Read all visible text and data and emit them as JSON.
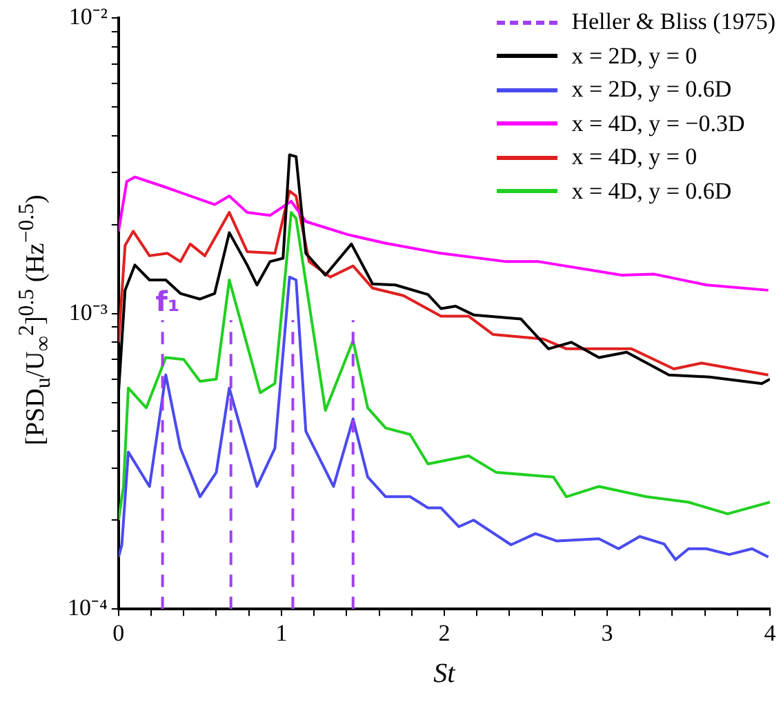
{
  "chart_data": {
    "type": "line",
    "xlabel": "St",
    "ylabel": "[PSD$_{u}$/U$_{∞}$$^{2}$]$^{0.5}$ (Hz$^{−0.5}$)",
    "xlim": [
      0,
      4
    ],
    "ylim": [
      0.0001,
      0.01
    ],
    "xticks": [
      0,
      {
        "value": 0.2,
        "label": null
      },
      {
        "value": 0.4,
        "label": null
      },
      {
        "value": 0.6,
        "label": null
      },
      {
        "value": 0.8,
        "label": null
      },
      1,
      {
        "value": 1.2,
        "label": null
      },
      {
        "value": 1.4,
        "label": null
      },
      {
        "value": 1.6,
        "label": null
      },
      {
        "value": 1.8,
        "label": null
      },
      2,
      {
        "value": 2.2,
        "label": null
      },
      {
        "value": 2.4,
        "label": null
      },
      {
        "value": 2.6,
        "label": null
      },
      {
        "value": 2.8,
        "label": null
      },
      3,
      {
        "value": 3.2,
        "label": null
      },
      {
        "value": 3.4,
        "label": null
      },
      {
        "value": 3.6,
        "label": null
      },
      {
        "value": 3.8,
        "label": null
      },
      4
    ],
    "yticks": [
      {
        "value": 0.0001,
        "label": "10⁻⁴"
      },
      {
        "value": 0.0002,
        "label": null
      },
      {
        "value": 0.0003,
        "label": null
      },
      {
        "value": 0.0004,
        "label": null
      },
      {
        "value": 0.0005,
        "label": null
      },
      {
        "value": 0.0006,
        "label": null
      },
      {
        "value": 0.0007,
        "label": null
      },
      {
        "value": 0.0008,
        "label": null
      },
      {
        "value": 0.0009,
        "label": null
      },
      {
        "value": 0.001,
        "label": "10⁻³"
      },
      {
        "value": 0.002,
        "label": null
      },
      {
        "value": 0.003,
        "label": null
      },
      {
        "value": 0.004,
        "label": null
      },
      {
        "value": 0.005,
        "label": null
      },
      {
        "value": 0.006,
        "label": null
      },
      {
        "value": 0.007,
        "label": null
      },
      {
        "value": 0.008,
        "label": null
      },
      {
        "value": 0.009,
        "label": null
      },
      {
        "value": 0.01,
        "label": "10⁻²"
      }
    ],
    "log": "y",
    "grid": false,
    "legend": "top right",
    "marker": "none",
    "annotations": [
      "f₁"
    ],
    "series": [
      {
        "name": "Heller & Bliss (1975)",
        "color": "#a040f0",
        "line_style": "dashed",
        "x": [
          0.27,
          0.27,
          null,
          0.69,
          0.69,
          null,
          1.07,
          1.07,
          null,
          1.44,
          1.44
        ],
        "values": [
          0.0001,
          0.00095,
          null,
          0.0001,
          0.00095,
          null,
          0.0001,
          0.00095,
          null,
          0.0001,
          0.00095
        ]
      },
      {
        "name": "x = 2D, y = 0",
        "color": "#000000",
        "line_style": "solid",
        "x": [
          0,
          0.04,
          0.1,
          0.19,
          0.29,
          0.38,
          0.5,
          0.59,
          0.68,
          0.79,
          0.85,
          0.93,
          1.01,
          1.05,
          1.09,
          1.15,
          1.27,
          1.43,
          1.56,
          1.7,
          1.9,
          1.98,
          2.07,
          2.18,
          2.47,
          2.64,
          2.78,
          2.95,
          3.12,
          3.38,
          3.63,
          3.95,
          4
        ],
        "values": [
          0.00054,
          0.0012,
          0.00146,
          0.0013,
          0.0013,
          0.00117,
          0.00112,
          0.00117,
          0.00188,
          0.00146,
          0.00125,
          0.0015,
          0.00154,
          0.00345,
          0.0034,
          0.0016,
          0.00135,
          0.00172,
          0.00126,
          0.00125,
          0.00116,
          0.00104,
          0.00106,
          0.00099,
          0.00096,
          0.00076,
          0.0008,
          0.00071,
          0.00074,
          0.00062,
          0.00061,
          0.00058,
          0.0006
        ]
      },
      {
        "name": "x = 2D, y = 0.6D",
        "color": "#4a4af0",
        "line_style": "solid",
        "x": [
          0,
          0.02,
          0.06,
          0.19,
          0.29,
          0.38,
          0.5,
          0.6,
          0.68,
          0.85,
          0.96,
          1.05,
          1.09,
          1.15,
          1.32,
          1.44,
          1.53,
          1.64,
          1.79,
          1.9,
          1.98,
          2.09,
          2.18,
          2.41,
          2.56,
          2.69,
          2.95,
          3.07,
          3.2,
          3.35,
          3.42,
          3.5,
          3.61,
          3.75,
          3.89,
          3.99
        ],
        "values": [
          0.00015,
          0.000165,
          0.00034,
          0.00026,
          0.00062,
          0.00035,
          0.00024,
          0.00029,
          0.00056,
          0.00026,
          0.00035,
          0.00133,
          0.0013,
          0.0004,
          0.00026,
          0.00044,
          0.00028,
          0.00024,
          0.00024,
          0.00022,
          0.00022,
          0.00019,
          0.0002,
          0.000165,
          0.00018,
          0.00017,
          0.000173,
          0.00016,
          0.000176,
          0.000166,
          0.000147,
          0.00016,
          0.00016,
          0.000153,
          0.00016,
          0.00015
        ]
      },
      {
        "name": "x = 4D, y = −0.3D",
        "color": "#ff00ff",
        "line_style": "solid",
        "x": [
          0,
          0.05,
          0.1,
          0.27,
          0.59,
          0.68,
          0.79,
          0.93,
          1.06,
          1.15,
          1.41,
          1.64,
          1.98,
          2.38,
          2.58,
          3.09,
          3.29,
          3.61,
          3.99
        ],
        "values": [
          0.0019,
          0.0028,
          0.0029,
          0.0027,
          0.00234,
          0.0025,
          0.0022,
          0.00215,
          0.0024,
          0.00205,
          0.00185,
          0.00173,
          0.0016,
          0.0015,
          0.0015,
          0.00135,
          0.00136,
          0.00125,
          0.0012
        ]
      },
      {
        "name": "x = 4D, y = 0",
        "color": "#e02020",
        "line_style": "solid",
        "x": [
          0,
          0.04,
          0.09,
          0.19,
          0.3,
          0.38,
          0.44,
          0.53,
          0.68,
          0.79,
          0.96,
          1.05,
          1.09,
          1.17,
          1.3,
          1.44,
          1.56,
          1.75,
          1.98,
          2.15,
          2.3,
          2.61,
          2.75,
          3.15,
          3.41,
          3.58,
          3.99
        ],
        "values": [
          0.0008,
          0.0017,
          0.0019,
          0.00157,
          0.0016,
          0.0015,
          0.00172,
          0.00157,
          0.0022,
          0.00162,
          0.0016,
          0.0026,
          0.0025,
          0.0015,
          0.00133,
          0.00145,
          0.00122,
          0.00115,
          0.00098,
          0.00098,
          0.00085,
          0.00082,
          0.00076,
          0.00076,
          0.00065,
          0.00068,
          0.00062
        ]
      },
      {
        "name": "x = 4D, y = 0.6D",
        "color": "#20d020",
        "line_style": "solid",
        "x": [
          0,
          0.03,
          0.06,
          0.17,
          0.29,
          0.4,
          0.5,
          0.6,
          0.68,
          0.87,
          0.96,
          1.06,
          1.09,
          1.27,
          1.44,
          1.53,
          1.64,
          1.79,
          1.9,
          2.15,
          2.32,
          2.67,
          2.75,
          2.95,
          3.24,
          3.5,
          3.74,
          4
        ],
        "values": [
          0.0002,
          0.00026,
          0.00056,
          0.00048,
          0.00071,
          0.0007,
          0.00059,
          0.0006,
          0.0013,
          0.00054,
          0.00058,
          0.0022,
          0.0021,
          0.00047,
          0.00081,
          0.00048,
          0.00041,
          0.00039,
          0.00031,
          0.00033,
          0.00029,
          0.00028,
          0.00024,
          0.00026,
          0.00024,
          0.00023,
          0.00021,
          0.00023
        ]
      }
    ]
  }
}
